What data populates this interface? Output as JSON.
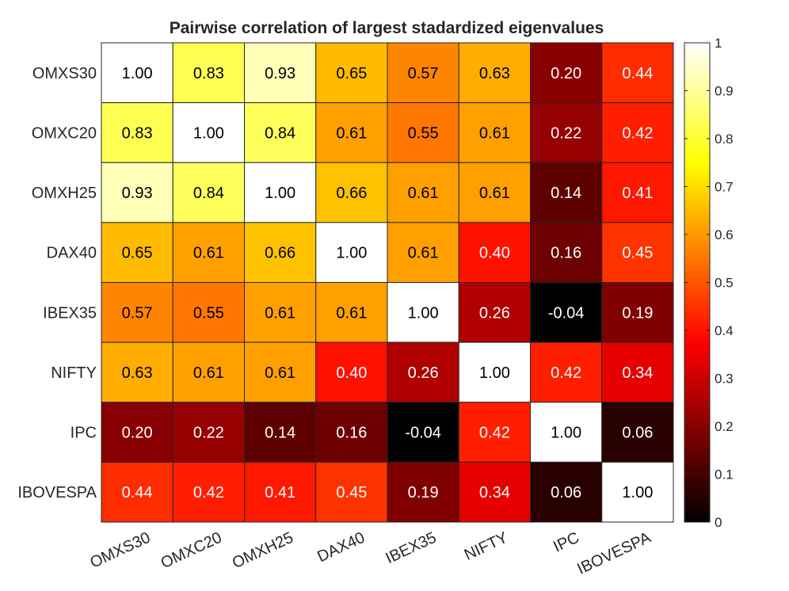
{
  "chart_data": {
    "type": "heatmap",
    "title": "Pairwise correlation of largest stadardized eigenvalues",
    "row_labels": [
      "OMXS30",
      "OMXC20",
      "OMXH25",
      "DAX40",
      "IBEX35",
      "NIFTY",
      "IPC",
      "IBOVESPA"
    ],
    "col_labels": [
      "OMXS30",
      "OMXC20",
      "OMXH25",
      "DAX40",
      "IBEX35",
      "NIFTY",
      "IPC",
      "IBOVESPA"
    ],
    "values": [
      [
        1.0,
        0.83,
        0.93,
        0.65,
        0.57,
        0.63,
        0.2,
        0.44
      ],
      [
        0.83,
        1.0,
        0.84,
        0.61,
        0.55,
        0.61,
        0.22,
        0.42
      ],
      [
        0.93,
        0.84,
        1.0,
        0.66,
        0.61,
        0.61,
        0.14,
        0.41
      ],
      [
        0.65,
        0.61,
        0.66,
        1.0,
        0.61,
        0.4,
        0.16,
        0.45
      ],
      [
        0.57,
        0.55,
        0.61,
        0.61,
        1.0,
        0.26,
        -0.04,
        0.19
      ],
      [
        0.63,
        0.61,
        0.61,
        0.4,
        0.26,
        1.0,
        0.42,
        0.34
      ],
      [
        0.2,
        0.22,
        0.14,
        0.16,
        -0.04,
        0.42,
        1.0,
        0.06
      ],
      [
        0.44,
        0.42,
        0.41,
        0.45,
        0.19,
        0.34,
        0.06,
        1.0
      ]
    ],
    "colormap": "hot",
    "clim": [
      0,
      1
    ],
    "colorbar_ticks": [
      0,
      0.1,
      0.2,
      0.3,
      0.4,
      0.5,
      0.6,
      0.7,
      0.8,
      0.9,
      1
    ],
    "colorbar_tick_labels": [
      "0",
      "0.1",
      "0.2",
      "0.3",
      "0.4",
      "0.5",
      "0.6",
      "0.7",
      "0.8",
      "0.9",
      "1"
    ],
    "value_format_decimals": 2,
    "colorbar_position": "right"
  }
}
